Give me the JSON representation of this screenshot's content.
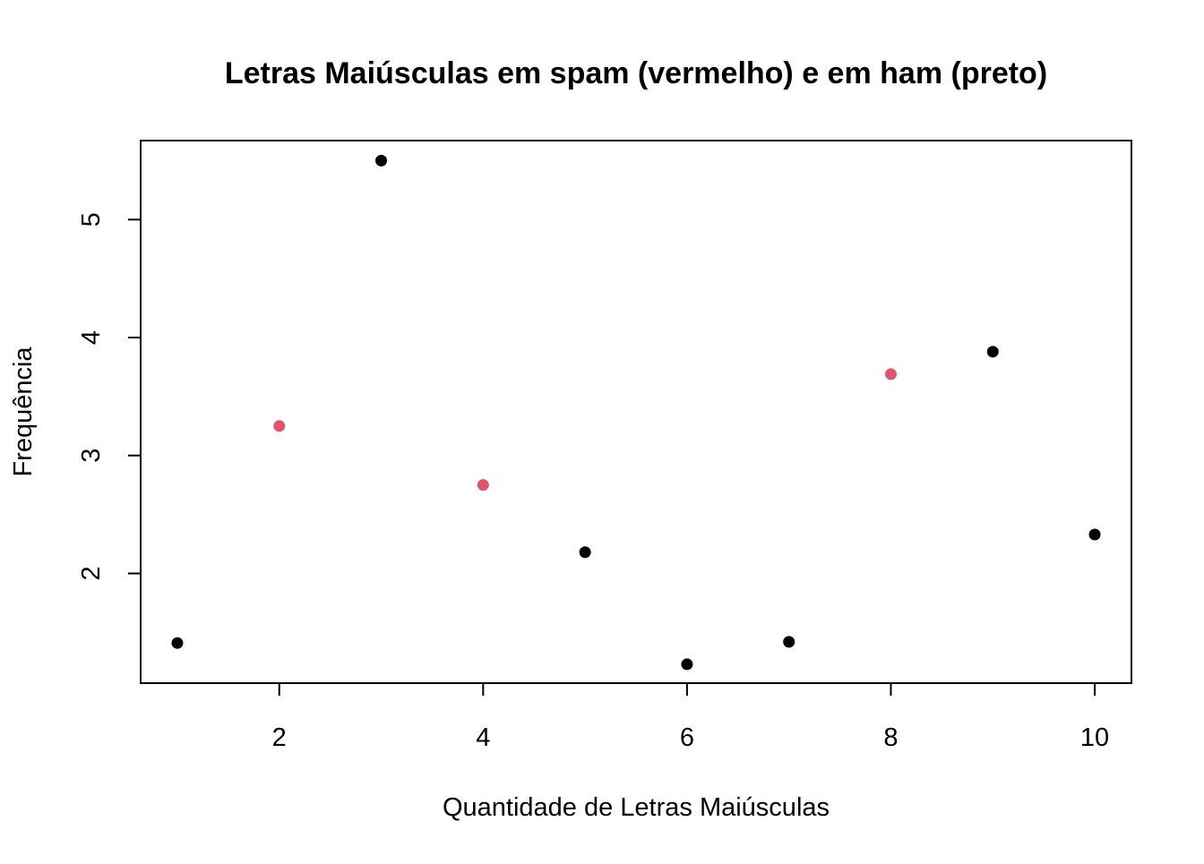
{
  "chart_data": {
    "type": "scatter",
    "title": "Letras Maiúsculas em spam (vermelho) e em ham (preto)",
    "xlabel": "Quantidade de Letras Maiúsculas",
    "ylabel": "Frequência",
    "xlim": [
      0.64,
      10.36
    ],
    "ylim": [
      1.07,
      5.67
    ],
    "x_ticks": [
      2,
      4,
      6,
      8,
      10
    ],
    "y_ticks": [
      2,
      3,
      4,
      5
    ],
    "grid": false,
    "legend": "none",
    "colors": {
      "spam": "#DF536B",
      "ham": "#000000"
    },
    "points": [
      {
        "x": 1,
        "y": 1.41,
        "group": "ham"
      },
      {
        "x": 2,
        "y": 3.25,
        "group": "spam"
      },
      {
        "x": 3,
        "y": 5.5,
        "group": "ham"
      },
      {
        "x": 4,
        "y": 2.75,
        "group": "spam"
      },
      {
        "x": 5,
        "y": 2.18,
        "group": "ham"
      },
      {
        "x": 6,
        "y": 1.23,
        "group": "ham"
      },
      {
        "x": 7,
        "y": 1.42,
        "group": "ham"
      },
      {
        "x": 8,
        "y": 3.69,
        "group": "spam"
      },
      {
        "x": 9,
        "y": 3.88,
        "group": "ham"
      },
      {
        "x": 10,
        "y": 2.33,
        "group": "ham"
      }
    ]
  }
}
